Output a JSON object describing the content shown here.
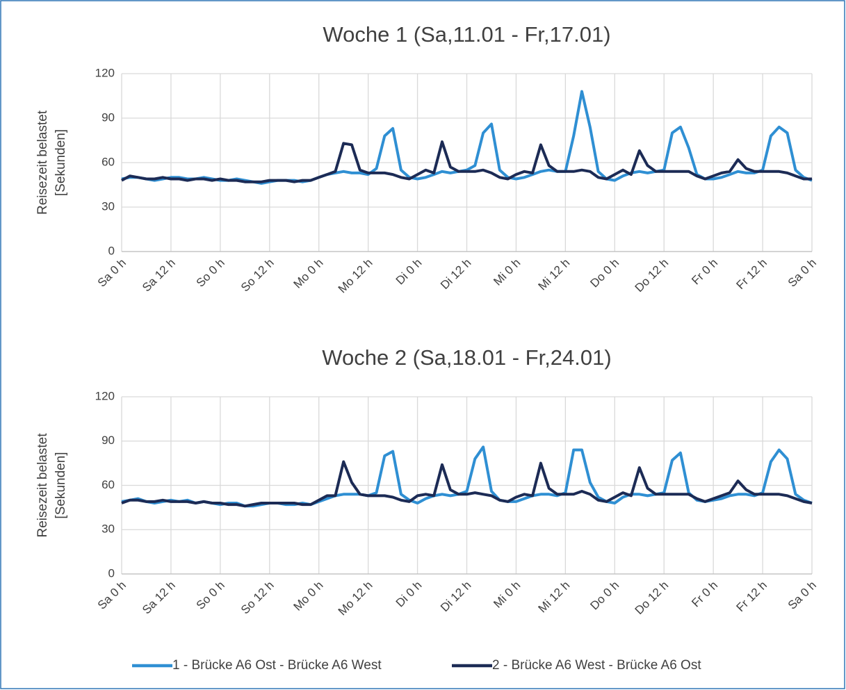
{
  "chart_data": [
    {
      "type": "line",
      "title": "Woche 1 (Sa,11.01 - Fr,17.01)",
      "ylabel": [
        "Reisezeit belastet",
        "[Sekunden]"
      ],
      "x": [
        0,
        2,
        4,
        6,
        8,
        10,
        12,
        14,
        16,
        18,
        20,
        22,
        24,
        26,
        28,
        30,
        32,
        34,
        36,
        38,
        40,
        42,
        44,
        46,
        48,
        50,
        52,
        54,
        56,
        58,
        60,
        62,
        64,
        66,
        68,
        70,
        72,
        74,
        76,
        78,
        80,
        82,
        84,
        86,
        88,
        90,
        92,
        94,
        96,
        98,
        100,
        102,
        104,
        106,
        108,
        110,
        112,
        114,
        116,
        118,
        120,
        122,
        124,
        126,
        128,
        130,
        132,
        134,
        136,
        138,
        140,
        142,
        144,
        146,
        148,
        150,
        152,
        154,
        156,
        158,
        160,
        162,
        164,
        166,
        168
      ],
      "xlim": [
        0,
        168
      ],
      "xticks": [
        {
          "value": 0,
          "label": "Sa 0 h"
        },
        {
          "value": 12,
          "label": "Sa 12 h"
        },
        {
          "value": 24,
          "label": "So 0 h"
        },
        {
          "value": 36,
          "label": "So 12 h"
        },
        {
          "value": 48,
          "label": "Mo 0 h"
        },
        {
          "value": 60,
          "label": "Mo 12 h"
        },
        {
          "value": 72,
          "label": "Di 0 h"
        },
        {
          "value": 84,
          "label": "Di 12 h"
        },
        {
          "value": 96,
          "label": "Mi 0 h"
        },
        {
          "value": 108,
          "label": "Mi 12 h"
        },
        {
          "value": 120,
          "label": "Do 0 h"
        },
        {
          "value": 132,
          "label": "Do 12 h"
        },
        {
          "value": 144,
          "label": "Fr 0 h"
        },
        {
          "value": 156,
          "label": "Fr 12 h"
        },
        {
          "value": 168,
          "label": "Sa 0 h"
        }
      ],
      "ylim": [
        0,
        120
      ],
      "yticks": [
        0,
        30,
        60,
        90,
        120
      ],
      "grid": true,
      "legend": "bottom",
      "series": [
        {
          "name": "1 - Brücke A6 Ost - Brücke A6 West",
          "color": "#2f8fd3",
          "values": [
            49,
            50,
            50,
            49,
            48,
            49,
            50,
            50,
            49,
            49,
            50,
            49,
            48,
            48,
            49,
            48,
            47,
            46,
            47,
            48,
            48,
            48,
            47,
            48,
            50,
            52,
            53,
            54,
            53,
            53,
            52,
            56,
            78,
            83,
            55,
            50,
            49,
            50,
            52,
            54,
            53,
            54,
            55,
            58,
            80,
            86,
            55,
            50,
            49,
            50,
            52,
            54,
            55,
            54,
            54,
            78,
            108,
            84,
            54,
            49,
            48,
            51,
            53,
            54,
            53,
            54,
            55,
            80,
            84,
            70,
            52,
            49,
            49,
            50,
            52,
            54,
            53,
            53,
            55,
            78,
            84,
            80,
            55,
            50,
            48
          ]
        },
        {
          "name": "2 - Brücke A6 West - Brücke A6 Ost",
          "color": "#1c2b55",
          "values": [
            48,
            51,
            50,
            49,
            49,
            50,
            49,
            49,
            48,
            49,
            49,
            48,
            49,
            48,
            48,
            47,
            47,
            47,
            48,
            48,
            48,
            47,
            48,
            48,
            50,
            52,
            54,
            73,
            72,
            55,
            53,
            53,
            53,
            52,
            50,
            49,
            52,
            55,
            53,
            74,
            57,
            54,
            54,
            54,
            55,
            53,
            50,
            49,
            52,
            54,
            53,
            72,
            58,
            54,
            54,
            54,
            55,
            54,
            50,
            49,
            52,
            55,
            52,
            68,
            58,
            54,
            54,
            54,
            54,
            54,
            51,
            49,
            51,
            53,
            54,
            62,
            56,
            54,
            54,
            54,
            54,
            53,
            51,
            49,
            49
          ]
        }
      ]
    },
    {
      "type": "line",
      "title": "Woche 2 (Sa,18.01 - Fr,24.01)",
      "ylabel": [
        "Reisezeit belastet",
        "[Sekunden]"
      ],
      "x": [
        0,
        2,
        4,
        6,
        8,
        10,
        12,
        14,
        16,
        18,
        20,
        22,
        24,
        26,
        28,
        30,
        32,
        34,
        36,
        38,
        40,
        42,
        44,
        46,
        48,
        50,
        52,
        54,
        56,
        58,
        60,
        62,
        64,
        66,
        68,
        70,
        72,
        74,
        76,
        78,
        80,
        82,
        84,
        86,
        88,
        90,
        92,
        94,
        96,
        98,
        100,
        102,
        104,
        106,
        108,
        110,
        112,
        114,
        116,
        118,
        120,
        122,
        124,
        126,
        128,
        130,
        132,
        134,
        136,
        138,
        140,
        142,
        144,
        146,
        148,
        150,
        152,
        154,
        156,
        158,
        160,
        162,
        164,
        166,
        168
      ],
      "xlim": [
        0,
        168
      ],
      "xticks": [
        {
          "value": 0,
          "label": "Sa 0 h"
        },
        {
          "value": 12,
          "label": "Sa 12 h"
        },
        {
          "value": 24,
          "label": "So 0 h"
        },
        {
          "value": 36,
          "label": "So 12 h"
        },
        {
          "value": 48,
          "label": "Mo 0 h"
        },
        {
          "value": 60,
          "label": "Mo 12 h"
        },
        {
          "value": 72,
          "label": "Di 0 h"
        },
        {
          "value": 84,
          "label": "Di 12 h"
        },
        {
          "value": 96,
          "label": "Mi 0 h"
        },
        {
          "value": 108,
          "label": "Mi 12 h"
        },
        {
          "value": 120,
          "label": "Do 0 h"
        },
        {
          "value": 132,
          "label": "Do 12 h"
        },
        {
          "value": 144,
          "label": "Fr 0 h"
        },
        {
          "value": 156,
          "label": "Fr 12 h"
        },
        {
          "value": 168,
          "label": "Sa 0 h"
        }
      ],
      "ylim": [
        0,
        120
      ],
      "yticks": [
        0,
        30,
        60,
        90,
        120
      ],
      "grid": true,
      "series": [
        {
          "color": "#2f8fd3",
          "values": [
            49,
            50,
            51,
            49,
            48,
            49,
            50,
            49,
            50,
            48,
            49,
            48,
            47,
            48,
            48,
            46,
            46,
            47,
            48,
            48,
            47,
            47,
            48,
            47,
            49,
            51,
            53,
            54,
            54,
            54,
            53,
            55,
            80,
            83,
            54,
            50,
            48,
            51,
            53,
            54,
            53,
            54,
            56,
            78,
            86,
            56,
            50,
            49,
            49,
            51,
            53,
            54,
            54,
            53,
            55,
            84,
            84,
            62,
            52,
            49,
            48,
            52,
            54,
            54,
            53,
            54,
            55,
            77,
            82,
            55,
            50,
            49,
            50,
            51,
            53,
            54,
            54,
            53,
            55,
            76,
            84,
            78,
            54,
            50,
            48
          ]
        },
        {
          "color": "#1c2b55",
          "values": [
            48,
            50,
            50,
            49,
            49,
            50,
            49,
            49,
            49,
            48,
            49,
            48,
            48,
            47,
            47,
            46,
            47,
            48,
            48,
            48,
            48,
            48,
            47,
            47,
            50,
            53,
            53,
            76,
            62,
            54,
            53,
            53,
            53,
            52,
            50,
            49,
            53,
            54,
            53,
            74,
            57,
            54,
            54,
            55,
            54,
            53,
            50,
            49,
            52,
            54,
            53,
            75,
            58,
            54,
            54,
            54,
            56,
            54,
            50,
            49,
            52,
            55,
            53,
            72,
            58,
            54,
            54,
            54,
            54,
            54,
            51,
            49,
            51,
            53,
            55,
            63,
            57,
            54,
            54,
            54,
            54,
            53,
            51,
            49,
            48
          ]
        }
      ]
    }
  ]
}
